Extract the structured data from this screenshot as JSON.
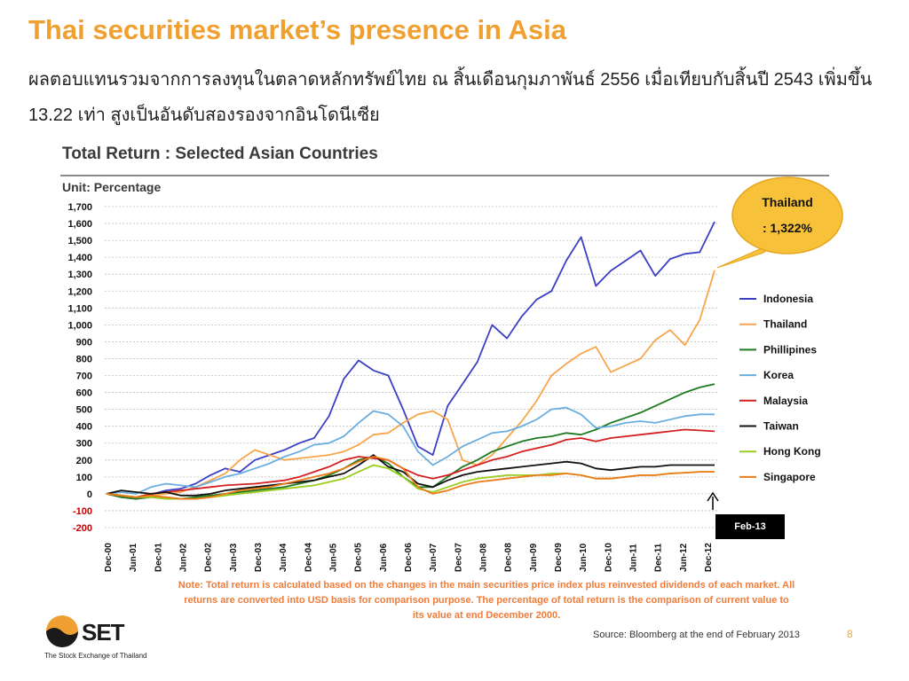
{
  "slide": {
    "title": "Thai securities market’s presence in Asia",
    "subtitle": "ผลตอบแทนรวมจากการลงทุนในตลาดหลักทรัพย์ไทย ณ สิ้นเดือนกุมภาพันธ์ 2556 เมื่อเทียบกับสิ้นปี 2543 เพิ่มขึ้น 13.22 เท่า สูงเป็นอันดับสองรองจากอินโดนีเซีย",
    "note": "Note: Total return is calculated based on the changes in the main securities price index plus reinvested dividends of each market. All returns are converted into USD basis for comparison purpose. The percentage of total return is the comparison of current value to its value at end December 2000.",
    "source": "Source: Bloomberg at the end of February 2013",
    "page_number": "8",
    "logo_text": "SET",
    "logo_tagline": "The Stock Exchange of Thailand"
  },
  "colors": {
    "title": "#f0a030",
    "Indonesia": "#3a3fc4",
    "Thailand": "#f7a54a",
    "Phillipines": "#1e7a1e",
    "Korea": "#6aaee0",
    "Malaysia": "#d42020",
    "Taiwan": "#111111",
    "Hong Kong": "#9acd1e",
    "Singapore": "#ee7a18",
    "callout": "#f7c23a"
  },
  "chart_data": {
    "type": "line",
    "title": "Total Return : Selected Asian Countries",
    "unit_label": "Unit: Percentage",
    "ylim": [
      -200,
      1700
    ],
    "yticks": [
      -200,
      -100,
      0,
      100,
      200,
      300,
      400,
      500,
      600,
      700,
      800,
      900,
      1000,
      1100,
      1200,
      1300,
      1400,
      1500,
      1600,
      1700
    ],
    "ytick_labels": [
      "-200",
      "-100",
      "0",
      "100",
      "200",
      "300",
      "400",
      "500",
      "600",
      "700",
      "800",
      "900",
      "1,000",
      "1,100",
      "1,200",
      "1,300",
      "1,400",
      "1,500",
      "1,600",
      "1,700"
    ],
    "x_labels": [
      "Dec-00",
      "Jun-01",
      "Dec-01",
      "Jun-02",
      "Dec-02",
      "Jun-03",
      "Dec-03",
      "Jun-04",
      "Dec-04",
      "Jun-05",
      "Dec-05",
      "Jun-06",
      "Dec-06",
      "Jun-07",
      "Dec-07",
      "Jun-08",
      "Dec-08",
      "Jun-09",
      "Dec-09",
      "Jun-10",
      "Dec-10",
      "Jun-11",
      "Dec-11",
      "Jun-12",
      "Dec-12"
    ],
    "grid": "horizontal dashed",
    "legend_position": "right",
    "callout": {
      "title": "Thailand",
      "value": ": 1,322%"
    },
    "end_marker": "Feb-13",
    "series": [
      {
        "name": "Indonesia",
        "values": [
          0,
          -20,
          -30,
          -5,
          20,
          30,
          60,
          110,
          150,
          130,
          200,
          230,
          260,
          300,
          330,
          460,
          680,
          790,
          730,
          700,
          500,
          280,
          230,
          520,
          650,
          780,
          1000,
          920,
          1050,
          1150,
          1200,
          1380,
          1520,
          1230,
          1320,
          1380,
          1440,
          1290,
          1390,
          1420,
          1430,
          1610
        ]
      },
      {
        "name": "Thailand",
        "values": [
          0,
          -10,
          -30,
          -10,
          0,
          10,
          40,
          80,
          120,
          200,
          260,
          230,
          200,
          210,
          220,
          230,
          250,
          290,
          350,
          360,
          420,
          470,
          490,
          440,
          200,
          170,
          230,
          330,
          430,
          550,
          700,
          770,
          830,
          870,
          720,
          760,
          800,
          910,
          970,
          880,
          1030,
          1322
        ]
      },
      {
        "name": "Phillipines",
        "values": [
          0,
          -20,
          -30,
          -20,
          -20,
          -30,
          -20,
          -10,
          0,
          10,
          20,
          30,
          40,
          60,
          80,
          110,
          150,
          200,
          220,
          180,
          100,
          40,
          40,
          100,
          160,
          200,
          250,
          280,
          310,
          330,
          340,
          360,
          350,
          380,
          420,
          450,
          480,
          520,
          560,
          600,
          630,
          650
        ]
      },
      {
        "name": "Korea",
        "values": [
          0,
          10,
          0,
          40,
          60,
          50,
          40,
          70,
          100,
          120,
          150,
          180,
          220,
          250,
          290,
          300,
          340,
          420,
          490,
          470,
          400,
          250,
          170,
          220,
          280,
          320,
          360,
          370,
          400,
          440,
          500,
          510,
          470,
          390,
          400,
          420,
          430,
          420,
          440,
          460,
          470,
          470
        ]
      },
      {
        "name": "Malaysia",
        "values": [
          0,
          -10,
          -20,
          0,
          10,
          20,
          30,
          40,
          50,
          55,
          60,
          70,
          80,
          100,
          130,
          160,
          200,
          220,
          210,
          200,
          150,
          110,
          90,
          110,
          140,
          170,
          200,
          220,
          250,
          270,
          290,
          320,
          330,
          310,
          330,
          340,
          350,
          360,
          370,
          380,
          375,
          370
        ]
      },
      {
        "name": "Taiwan",
        "values": [
          0,
          20,
          10,
          0,
          10,
          -10,
          -10,
          0,
          20,
          30,
          40,
          50,
          60,
          70,
          80,
          100,
          120,
          170,
          230,
          160,
          130,
          60,
          40,
          80,
          110,
          130,
          140,
          150,
          160,
          170,
          180,
          190,
          180,
          150,
          140,
          150,
          160,
          160,
          170,
          170,
          170,
          170
        ]
      },
      {
        "name": "Hong Kong",
        "values": [
          0,
          -10,
          -20,
          -20,
          -30,
          -30,
          -30,
          -20,
          -10,
          0,
          10,
          20,
          30,
          40,
          50,
          70,
          90,
          130,
          170,
          150,
          100,
          30,
          10,
          40,
          70,
          90,
          100,
          110,
          110,
          110,
          120,
          120,
          110,
          90,
          90,
          100,
          110,
          110,
          120,
          125,
          130,
          130
        ]
      },
      {
        "name": "Singapore",
        "values": [
          0,
          -10,
          -20,
          -10,
          -20,
          -30,
          -30,
          -20,
          0,
          20,
          30,
          40,
          60,
          80,
          100,
          120,
          150,
          190,
          220,
          200,
          150,
          40,
          0,
          20,
          50,
          70,
          80,
          90,
          100,
          110,
          110,
          120,
          110,
          90,
          90,
          100,
          110,
          110,
          120,
          125,
          130,
          130
        ]
      }
    ]
  }
}
